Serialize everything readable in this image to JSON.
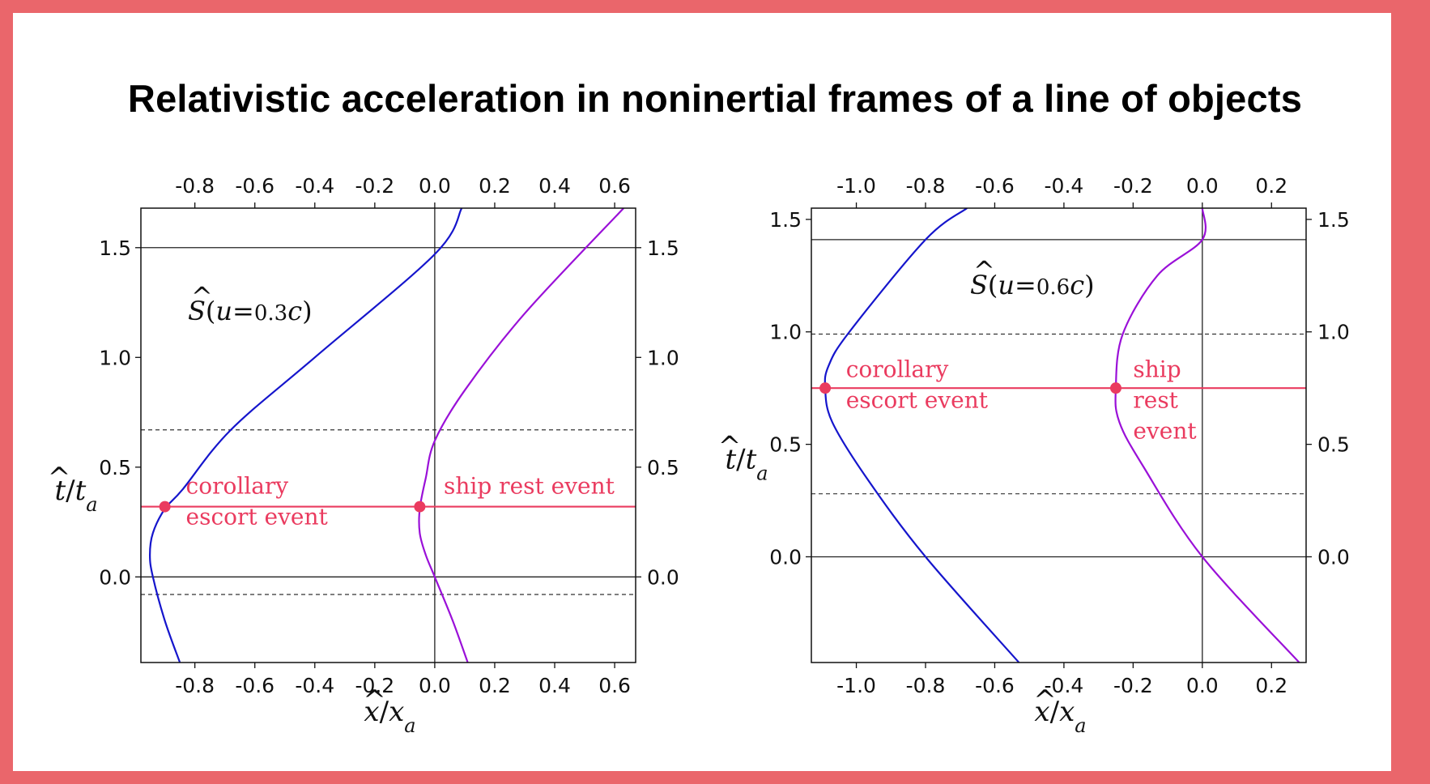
{
  "title": "Relativistic acceleration in noninertial frames of a line of objects",
  "colors": {
    "border": "#ea666b",
    "escort": "#1515cc",
    "ship": "#9a10d8",
    "event": "#ea3b5f",
    "axis": "#000000"
  },
  "chart_data": [
    {
      "type": "line",
      "frame_label_parts": [
        "S",
        "(",
        "u",
        "=",
        "0.3",
        "c",
        ")"
      ],
      "xlabel_parts": [
        "x",
        "/",
        "x",
        "a"
      ],
      "ylabel_parts": [
        "t",
        "/",
        "t",
        "a"
      ],
      "xlim": [
        -0.98,
        0.67
      ],
      "ylim": [
        -0.39,
        1.68
      ],
      "xticks": [
        -0.8,
        -0.6,
        -0.4,
        -0.2,
        0.0,
        0.2,
        0.4,
        0.6
      ],
      "xtick_labels": [
        "-0.8",
        "-0.6",
        "-0.4",
        "-0.2",
        "0.0",
        "0.2",
        "0.4",
        "0.6"
      ],
      "yticks": [
        0.0,
        0.5,
        1.0,
        1.5
      ],
      "ytick_labels": [
        "0.0",
        "0.5",
        "1.0",
        "1.5"
      ],
      "secondary_x_axis": "top",
      "secondary_y_axis": "right",
      "series": [
        {
          "role": "escort",
          "points": [
            [
              -0.85,
              -0.39
            ],
            [
              -0.9,
              -0.2
            ],
            [
              -0.94,
              0.0
            ],
            [
              -0.95,
              0.1
            ],
            [
              -0.94,
              0.2
            ],
            [
              -0.9,
              0.31
            ],
            [
              -0.84,
              0.4
            ],
            [
              -0.68,
              0.67
            ],
            [
              -0.4,
              1.0
            ],
            [
              0.0,
              1.47
            ],
            [
              0.09,
              1.68
            ]
          ]
        },
        {
          "role": "ship",
          "points": [
            [
              0.11,
              -0.39
            ],
            [
              0.06,
              -0.2
            ],
            [
              0.0,
              0.0
            ],
            [
              -0.03,
              0.1
            ],
            [
              -0.05,
              0.2
            ],
            [
              -0.05,
              0.31
            ],
            [
              -0.03,
              0.45
            ],
            [
              0.0,
              0.62
            ],
            [
              0.1,
              0.85
            ],
            [
              0.3,
              1.2
            ],
            [
              0.63,
              1.68
            ]
          ]
        }
      ],
      "hlines_solid": [
        0.0,
        1.5
      ],
      "hlines_dashed": [
        -0.08,
        0.67
      ],
      "vlines_solid": [
        0.0
      ],
      "event_line": 0.32,
      "event_points": [
        [
          -0.9,
          0.32
        ],
        [
          -0.05,
          0.32
        ]
      ],
      "annotations": [
        {
          "lines": [
            "corollary",
            "escort event"
          ],
          "x": -0.83,
          "y": 0.38
        },
        {
          "lines": [
            "ship rest event"
          ],
          "x": 0.03,
          "y": 0.38
        }
      ]
    },
    {
      "type": "line",
      "frame_label_parts": [
        "S",
        "(",
        "u",
        "=",
        "0.6",
        "c",
        ")"
      ],
      "xlabel_parts": [
        "x",
        "/",
        "x",
        "a"
      ],
      "ylabel_parts": [
        "t",
        "/",
        "t",
        "a"
      ],
      "xlim": [
        -1.13,
        0.3
      ],
      "ylim": [
        -0.47,
        1.55
      ],
      "xticks": [
        -1.0,
        -0.8,
        -0.6,
        -0.4,
        -0.2,
        0.0,
        0.2
      ],
      "xtick_labels": [
        "-1.0",
        "-0.8",
        "-0.6",
        "-0.4",
        "-0.2",
        "0.0",
        "0.2"
      ],
      "yticks": [
        0.0,
        0.5,
        1.0,
        1.5
      ],
      "ytick_labels": [
        "0.0",
        "0.5",
        "1.0",
        "1.5"
      ],
      "secondary_x_axis": "top",
      "secondary_y_axis": "right",
      "series": [
        {
          "role": "escort",
          "points": [
            [
              -0.53,
              -0.47
            ],
            [
              -0.8,
              0.0
            ],
            [
              -0.97,
              0.35
            ],
            [
              -1.07,
              0.6
            ],
            [
              -1.09,
              0.75
            ],
            [
              -1.08,
              0.85
            ],
            [
              -1.02,
              1.0
            ],
            [
              -0.8,
              1.41
            ],
            [
              -0.68,
              1.55
            ]
          ]
        },
        {
          "role": "ship",
          "points": [
            [
              0.28,
              -0.47
            ],
            [
              0.0,
              0.0
            ],
            [
              -0.17,
              0.4
            ],
            [
              -0.24,
              0.6
            ],
            [
              -0.25,
              0.75
            ],
            [
              -0.23,
              0.99
            ],
            [
              -0.13,
              1.25
            ],
            [
              0.0,
              1.41
            ],
            [
              0.0,
              1.55
            ]
          ]
        }
      ],
      "hlines_solid": [
        0.0,
        1.41
      ],
      "hlines_dashed": [
        0.28,
        0.99
      ],
      "vlines_solid": [
        0.0
      ],
      "event_line": 0.75,
      "event_points": [
        [
          -1.09,
          0.75
        ],
        [
          -0.25,
          0.75
        ]
      ],
      "annotations": [
        {
          "lines": [
            "corollary",
            "escort event"
          ],
          "x": -1.03,
          "y": 0.8
        },
        {
          "lines": [
            "ship",
            "rest",
            "event"
          ],
          "x": -0.2,
          "y": 0.8
        }
      ]
    }
  ]
}
